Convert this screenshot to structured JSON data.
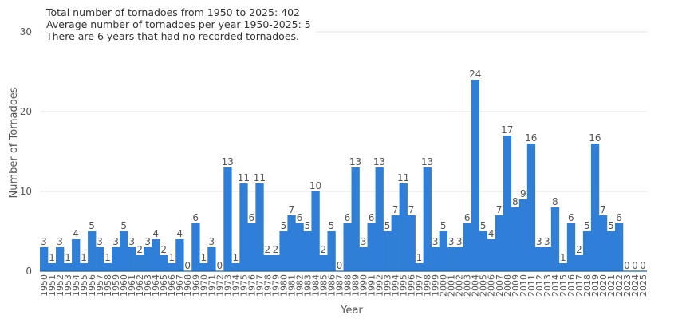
{
  "chart_data": {
    "type": "bar",
    "title": "",
    "xlabel": "Year",
    "ylabel": "Number of Tornadoes",
    "ylim": [
      0,
      30
    ],
    "yticks": [
      0,
      10,
      20,
      30
    ],
    "grid": true,
    "bar_color": "#2f7fd8",
    "annotations": [
      "Total number of tornadoes from 1950 to 2025: 402",
      "Average number of tornadoes per year 1950-2025: 5",
      "There are 6 years that had no recorded tornadoes."
    ],
    "categories": [
      "1950",
      "1951",
      "1952",
      "1953",
      "1954",
      "1955",
      "1956",
      "1957",
      "1958",
      "1959",
      "1960",
      "1961",
      "1962",
      "1963",
      "1964",
      "1965",
      "1966",
      "1967",
      "1968",
      "1969",
      "1970",
      "1971",
      "1972",
      "1973",
      "1974",
      "1975",
      "1976",
      "1977",
      "1978",
      "1979",
      "1980",
      "1981",
      "1982",
      "1983",
      "1984",
      "1985",
      "1986",
      "1987",
      "1988",
      "1989",
      "1990",
      "1991",
      "1992",
      "1993",
      "1994",
      "1995",
      "1996",
      "1997",
      "1998",
      "1999",
      "2000",
      "2001",
      "2002",
      "2003",
      "2004",
      "2005",
      "2006",
      "2007",
      "2008",
      "2009",
      "2010",
      "2011",
      "2012",
      "2013",
      "2014",
      "2015",
      "2016",
      "2017",
      "2018",
      "2019",
      "2020",
      "2021",
      "2022",
      "2023",
      "2024",
      "2025"
    ],
    "values": [
      3,
      1,
      3,
      1,
      4,
      1,
      5,
      3,
      1,
      3,
      5,
      3,
      2,
      3,
      4,
      2,
      1,
      4,
      0,
      6,
      1,
      3,
      0,
      13,
      1,
      11,
      6,
      11,
      2,
      2,
      5,
      7,
      6,
      5,
      10,
      2,
      5,
      0,
      6,
      13,
      3,
      6,
      13,
      5,
      7,
      11,
      7,
      1,
      13,
      3,
      5,
      3,
      3,
      6,
      24,
      5,
      4,
      7,
      17,
      8,
      9,
      16,
      3,
      3,
      8,
      1,
      6,
      2,
      5,
      16,
      7,
      5,
      6,
      0,
      0,
      0
    ]
  }
}
